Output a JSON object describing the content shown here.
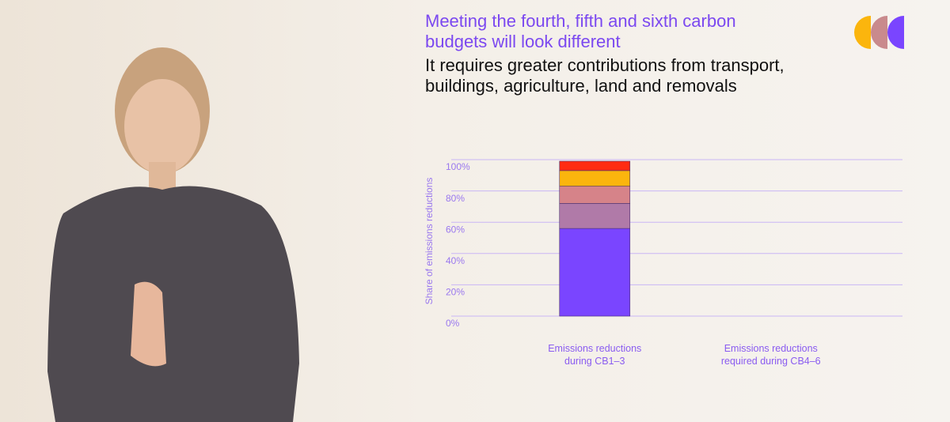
{
  "chart_data": {
    "type": "stacked_bar",
    "title": "Meeting the fourth, fifth and sixth carbon budgets will look different",
    "subtitle": "It requires greater contributions from transport, buildings, agriculture, land and removals",
    "y_label": "Share of emissions reductions",
    "categories": [
      "Emissions reductions during CB1–3",
      "Emissions reductions required during CB4–6"
    ],
    "series": [
      {
        "color": "#7a45ff",
        "values": [
          56,
          null
        ]
      },
      {
        "color": "#b07aa8",
        "values": [
          16,
          null
        ]
      },
      {
        "color": "#d68389",
        "values": [
          11,
          null
        ]
      },
      {
        "color": "#fbb50d",
        "values": [
          10,
          null
        ]
      },
      {
        "color": "#ff2c12",
        "values": [
          6,
          null
        ]
      }
    ],
    "ylim": [
      0,
      100
    ],
    "yticks": [
      {
        "value": 0,
        "label": "0%"
      },
      {
        "value": 20,
        "label": "20%"
      },
      {
        "value": 40,
        "label": "40%"
      },
      {
        "value": 60,
        "label": "60%"
      },
      {
        "value": 80,
        "label": "80%"
      },
      {
        "value": 100,
        "label": "100%"
      }
    ],
    "grid": true
  }
}
